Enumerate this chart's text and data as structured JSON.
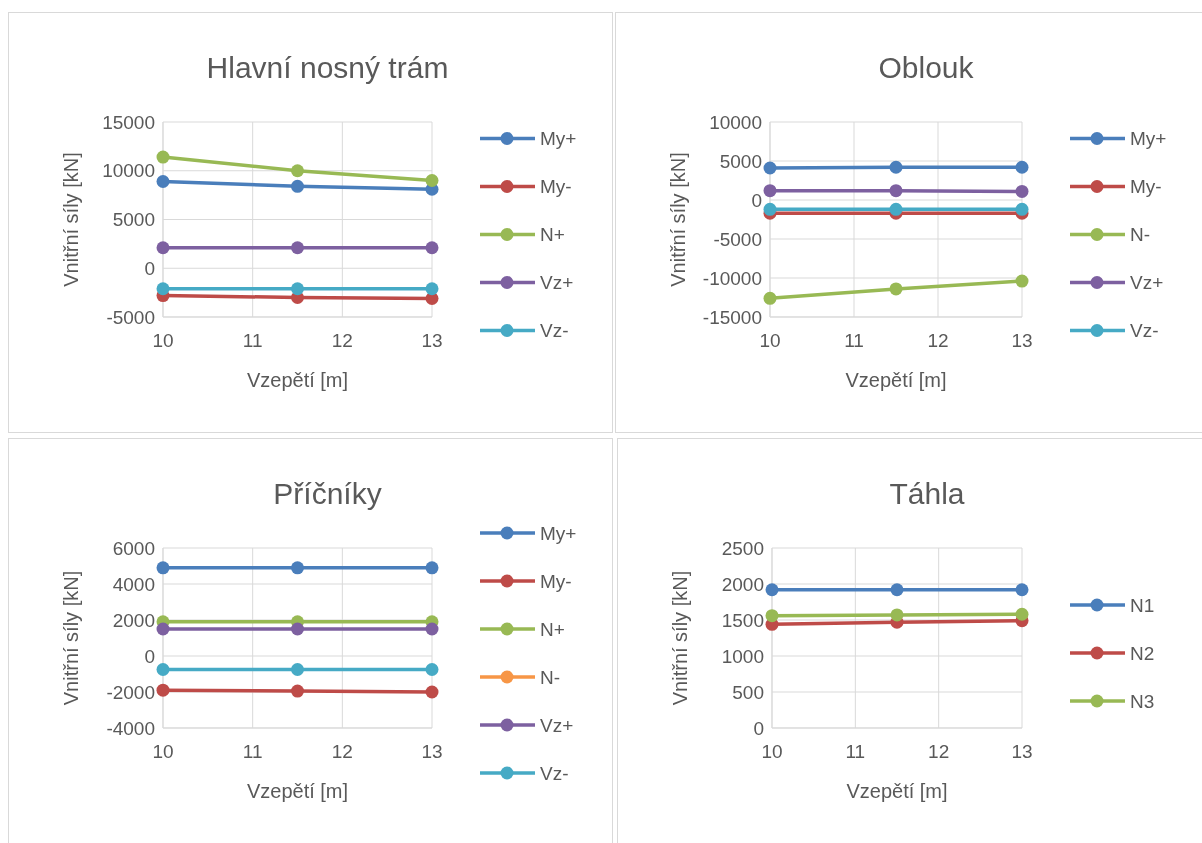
{
  "chart_data": [
    {
      "type": "line",
      "title": "Hlavní nosný trám",
      "xlabel": "Vzepětí [m]",
      "ylabel": "Vnitřní síly [kN]",
      "x": [
        10,
        11.5,
        13
      ],
      "xlim": [
        10,
        13
      ],
      "xticks": [
        10,
        11,
        12,
        13
      ],
      "ylim": [
        -5000,
        15000
      ],
      "yticks": [
        -5000,
        0,
        5000,
        10000,
        15000
      ],
      "grid": true,
      "legend": "right",
      "marker": "circle",
      "series": [
        {
          "name": "My+",
          "color": "#4a7ebb",
          "values": [
            8900,
            8400,
            8100
          ]
        },
        {
          "name": "My-",
          "color": "#be4b48",
          "values": [
            -2800,
            -3000,
            -3100
          ]
        },
        {
          "name": "N+",
          "color": "#98b954",
          "values": [
            11400,
            10000,
            9000
          ]
        },
        {
          "name": "Vz+",
          "color": "#7d60a0",
          "values": [
            2100,
            2100,
            2100
          ]
        },
        {
          "name": "Vz-",
          "color": "#46aac5",
          "values": [
            -2100,
            -2100,
            -2100
          ]
        }
      ]
    },
    {
      "type": "line",
      "title": "Oblouk",
      "xlabel": "Vzepětí [m]",
      "ylabel": "Vnitřní síly [kN]",
      "x": [
        10,
        11.5,
        13
      ],
      "xlim": [
        10,
        13
      ],
      "xticks": [
        10,
        11,
        12,
        13
      ],
      "ylim": [
        -15000,
        10000
      ],
      "yticks": [
        -15000,
        -10000,
        -5000,
        0,
        5000,
        10000
      ],
      "grid": true,
      "legend": "right",
      "marker": "circle",
      "series": [
        {
          "name": "My+",
          "color": "#4a7ebb",
          "values": [
            4100,
            4200,
            4200
          ]
        },
        {
          "name": "My-",
          "color": "#be4b48",
          "values": [
            -1700,
            -1700,
            -1700
          ]
        },
        {
          "name": "N-",
          "color": "#98b954",
          "values": [
            -12600,
            -11400,
            -10400
          ]
        },
        {
          "name": "Vz+",
          "color": "#7d60a0",
          "values": [
            1200,
            1200,
            1100
          ]
        },
        {
          "name": "Vz-",
          "color": "#46aac5",
          "values": [
            -1200,
            -1200,
            -1200
          ]
        }
      ]
    },
    {
      "type": "line",
      "title": "Příčníky",
      "xlabel": "Vzepětí [m]",
      "ylabel": "Vnitřní síly [kN]",
      "x": [
        10,
        11.5,
        13
      ],
      "xlim": [
        10,
        13
      ],
      "xticks": [
        10,
        11,
        12,
        13
      ],
      "ylim": [
        -4000,
        6000
      ],
      "yticks": [
        -4000,
        -2000,
        0,
        2000,
        4000,
        6000
      ],
      "grid": true,
      "legend": "right",
      "marker": "circle",
      "series": [
        {
          "name": "My+",
          "color": "#4a7ebb",
          "values": [
            4900,
            4900,
            4900
          ]
        },
        {
          "name": "My-",
          "color": "#be4b48",
          "values": [
            -1900,
            -1950,
            -2000
          ]
        },
        {
          "name": "N+",
          "color": "#98b954",
          "values": [
            1900,
            1900,
            1900
          ]
        },
        {
          "name": "N-",
          "color": "#f79646",
          "values": [
            null,
            null,
            null
          ]
        },
        {
          "name": "Vz+",
          "color": "#7d60a0",
          "values": [
            1500,
            1500,
            1500
          ]
        },
        {
          "name": "Vz-",
          "color": "#46aac5",
          "values": [
            -750,
            -750,
            -750
          ]
        }
      ]
    },
    {
      "type": "line",
      "title": "Táhla",
      "xlabel": "Vzepětí [m]",
      "ylabel": "Vnitřní síly [kN]",
      "x": [
        10,
        11.5,
        13
      ],
      "xlim": [
        10,
        13
      ],
      "xticks": [
        10,
        11,
        12,
        13
      ],
      "ylim": [
        0,
        2500
      ],
      "yticks": [
        0,
        500,
        1000,
        1500,
        2000,
        2500
      ],
      "grid": true,
      "legend": "right",
      "marker": "circle",
      "series": [
        {
          "name": "N1",
          "color": "#4a7ebb",
          "values": [
            1920,
            1920,
            1920
          ]
        },
        {
          "name": "N2",
          "color": "#be4b48",
          "values": [
            1440,
            1470,
            1490
          ]
        },
        {
          "name": "N3",
          "color": "#98b954",
          "values": [
            1560,
            1570,
            1580
          ]
        }
      ]
    }
  ]
}
